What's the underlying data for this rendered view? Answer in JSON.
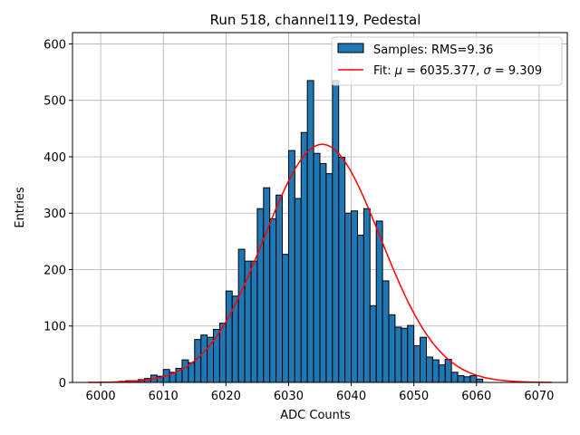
{
  "chart_data": {
    "type": "bar",
    "title": "Run 518, channel119, Pedestal",
    "xlabel": "ADC Counts",
    "ylabel": "Entries",
    "xlim": [
      5995.5,
      6074.5
    ],
    "ylim": [
      0,
      620
    ],
    "xticks": [
      6000,
      6010,
      6020,
      6030,
      6040,
      6050,
      6060,
      6070
    ],
    "yticks": [
      0,
      100,
      200,
      300,
      400,
      500,
      600
    ],
    "grid": true,
    "legend_position": "top-right",
    "bin_width": 1,
    "bin_start": 6002,
    "bin_values": [
      1,
      2,
      3,
      3,
      5,
      7,
      13,
      11,
      23,
      18,
      25,
      40,
      35,
      76,
      84,
      80,
      94,
      105,
      162,
      153,
      236,
      215,
      215,
      308,
      345,
      290,
      332,
      227,
      411,
      326,
      443,
      535,
      406,
      388,
      370,
      535,
      399,
      300,
      304,
      261,
      308,
      136,
      286,
      180,
      120,
      98,
      96,
      101,
      65,
      80,
      45,
      40,
      31,
      41,
      18,
      12,
      10,
      12,
      6
    ],
    "bar_color": "#1f77b4",
    "fit": {
      "mu": 6035.377,
      "sigma": 9.309,
      "amplitude": 422,
      "x_range": [
        5998,
        6072
      ],
      "color": "#ff0000"
    },
    "legend": {
      "samples_label": "Samples: RMS=9.36",
      "fit_label_prefix": "Fit: ",
      "fit_mu_symbol": "μ",
      "fit_mu_value": " = 6035.377, ",
      "fit_sigma_symbol": "σ",
      "fit_sigma_value": " = 9.309"
    }
  }
}
